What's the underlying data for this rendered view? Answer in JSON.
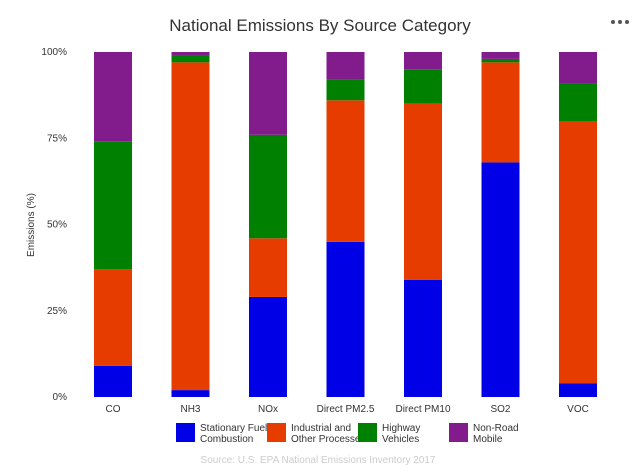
{
  "chart_data": {
    "type": "bar",
    "stacked": true,
    "title": "National Emissions By Source Category",
    "ylabel": "Emissions (%)",
    "xlabel": "",
    "ylim": [
      0,
      100
    ],
    "yticks": [
      "0%",
      "25%",
      "50%",
      "75%",
      "100%"
    ],
    "ytick_values": [
      0,
      25,
      50,
      75,
      100
    ],
    "categories": [
      "CO",
      "NH3",
      "NOx",
      "Direct PM2.5",
      "Direct PM10",
      "SO2",
      "VOC"
    ],
    "series": [
      {
        "name": "Stationary Fuel Combustion",
        "label_lines": [
          "Stationary Fuel",
          "Combustion"
        ],
        "color": "#0000e6",
        "values": [
          9,
          2,
          29,
          45,
          34,
          68,
          4
        ]
      },
      {
        "name": "Industrial and Other Processes",
        "label_lines": [
          "Industrial and",
          "Other Processes"
        ],
        "color": "#e63c00",
        "values": [
          28,
          95,
          17,
          41,
          51,
          29,
          76
        ]
      },
      {
        "name": "Highway Vehicles",
        "label_lines": [
          "Highway",
          "Vehicles"
        ],
        "color": "#008000",
        "values": [
          37,
          2,
          30,
          6,
          10,
          1,
          11
        ]
      },
      {
        "name": "Non-Road Mobile",
        "label_lines": [
          "Non-Road",
          "Mobile"
        ],
        "color": "#821c8c",
        "values": [
          26,
          1,
          24,
          8,
          5,
          2,
          9
        ]
      }
    ],
    "legend_position": "bottom",
    "source": "Source: U.S. EPA National Emissions Inventory 2017",
    "menu_icon": "more-options-icon"
  }
}
